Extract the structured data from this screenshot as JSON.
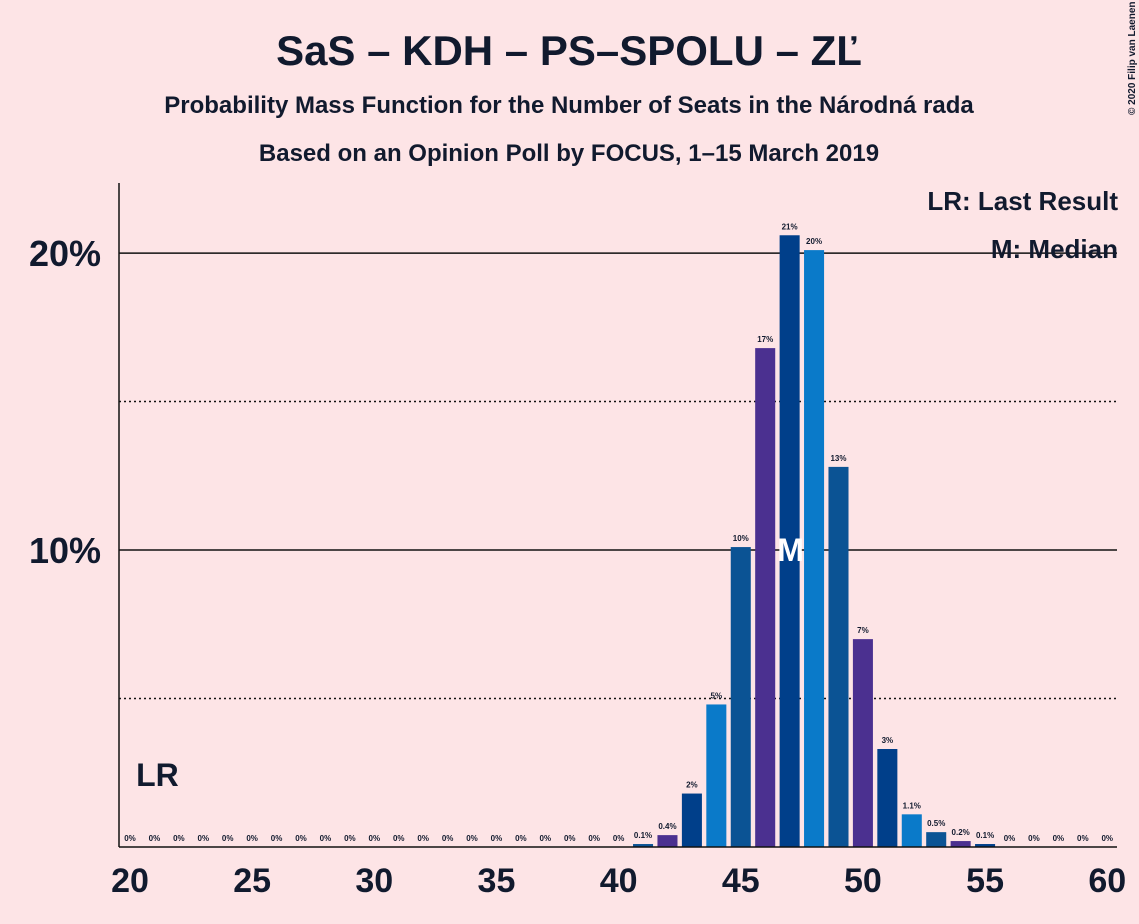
{
  "chart_data": {
    "type": "bar",
    "title": "SaS – KDH – PS–SPOLU – ZĽ",
    "subtitle": "Probability Mass Function for the Number of Seats in the Národná rada",
    "subtitle2": "Based on an Opinion Poll by FOCUS, 1–15 March 2019",
    "credit": "© 2020 Filip van Laenen",
    "x": [
      20,
      21,
      22,
      23,
      24,
      25,
      26,
      27,
      28,
      29,
      30,
      31,
      32,
      33,
      34,
      35,
      36,
      37,
      38,
      39,
      40,
      41,
      42,
      43,
      44,
      45,
      46,
      47,
      48,
      49,
      50,
      51,
      52,
      53,
      54,
      55,
      56,
      57,
      58,
      59,
      60
    ],
    "values": [
      0,
      0,
      0,
      0,
      0,
      0,
      0,
      0,
      0,
      0,
      0,
      0,
      0,
      0,
      0,
      0,
      0,
      0,
      0,
      0,
      0,
      0.1,
      0.4,
      1.8,
      4.8,
      10.1,
      16.8,
      20.6,
      20.1,
      12.8,
      7.0,
      3.3,
      1.1,
      0.5,
      0.2,
      0.1,
      0,
      0,
      0,
      0,
      0
    ],
    "value_labels": [
      "0%",
      "0%",
      "0%",
      "0%",
      "0%",
      "0%",
      "0%",
      "0%",
      "0%",
      "0%",
      "0%",
      "0%",
      "0%",
      "0%",
      "0%",
      "0%",
      "0%",
      "0%",
      "0%",
      "0%",
      "0%",
      "0.1%",
      "0.4%",
      "2%",
      "5%",
      "10%",
      "17%",
      "21%",
      "20%",
      "13%",
      "7%",
      "3%",
      "1.1%",
      "0.5%",
      "0.2%",
      "0.1%",
      "0%",
      "0%",
      "0%",
      "0%",
      "0%"
    ],
    "colors": [
      "#0a7ac9",
      "#0b5394",
      "#4b3090",
      "#003f8a"
    ],
    "xlim": [
      19.55,
      60.4
    ],
    "xticks": [
      20,
      25,
      30,
      35,
      40,
      45,
      50,
      55,
      60
    ],
    "ylim": [
      0,
      22.36
    ],
    "yticks": [
      {
        "value": 10,
        "label": "10%"
      },
      {
        "value": 20,
        "label": "20%"
      }
    ],
    "minor_grid": [
      5,
      15
    ],
    "annotations": [
      {
        "text": "LR",
        "x": 21
      },
      {
        "text": "M",
        "x": 47
      }
    ],
    "legend": [
      "LR: Last Result",
      "M: Median"
    ]
  }
}
